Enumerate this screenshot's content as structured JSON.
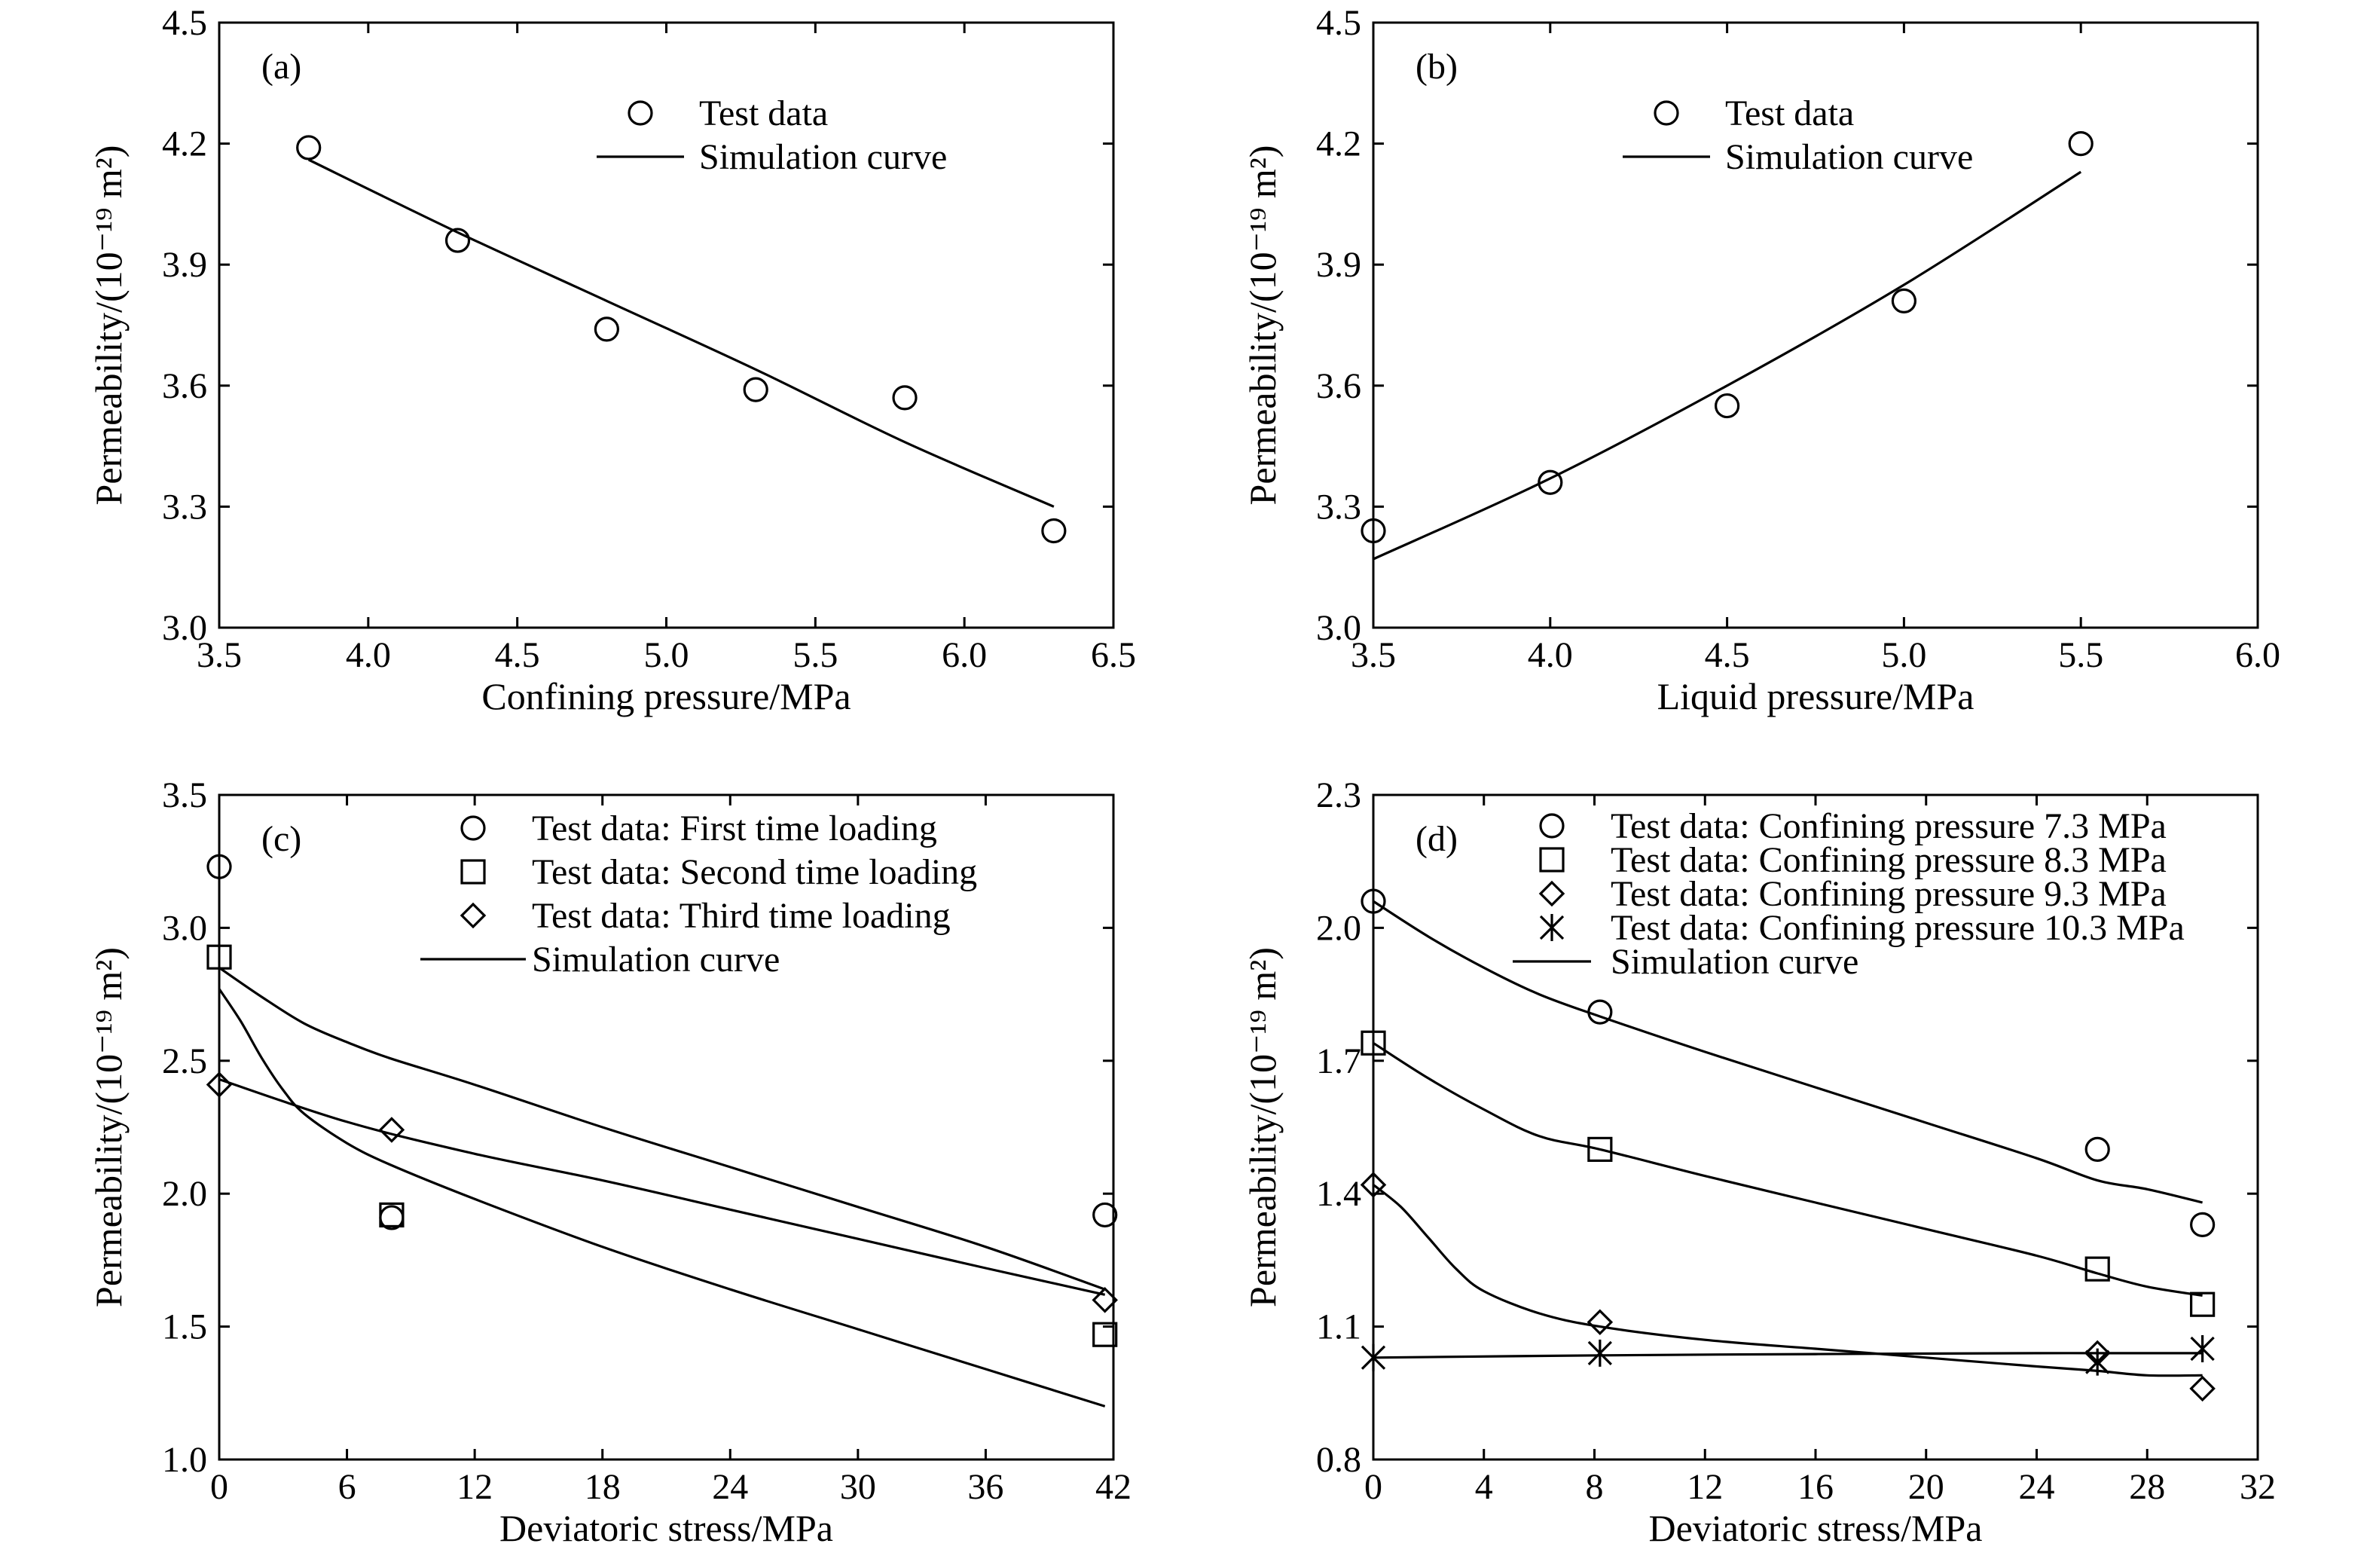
{
  "chart_data": [
    {
      "type": "scatter",
      "panel_label": "(a)",
      "xlabel": "Confining pressure/MPa",
      "ylabel": "Permeability/(10⁻¹⁹ m²)",
      "xlim": [
        3.5,
        6.5
      ],
      "ylim": [
        3.0,
        4.5
      ],
      "xticks": [
        "3.5",
        "4.0",
        "4.5",
        "5.0",
        "5.5",
        "6.0",
        "6.5"
      ],
      "yticks": [
        "3.0",
        "3.3",
        "3.6",
        "3.9",
        "4.2",
        "4.5"
      ],
      "legend_position": "top-center",
      "legend": [
        {
          "label": "Test data",
          "marker": "circle"
        },
        {
          "label": "Simulation curve",
          "marker": "line"
        }
      ],
      "series": [
        {
          "kind": "points",
          "marker": "circle",
          "x": [
            3.8,
            4.3,
            4.8,
            5.3,
            5.8,
            6.3
          ],
          "y": [
            4.19,
            3.96,
            3.74,
            3.59,
            3.57,
            3.24
          ]
        },
        {
          "kind": "line",
          "x": [
            3.8,
            4.3,
            4.8,
            5.3,
            5.8,
            6.3
          ],
          "y": [
            4.16,
            3.98,
            3.81,
            3.64,
            3.46,
            3.3
          ]
        }
      ]
    },
    {
      "type": "scatter",
      "panel_label": "(b)",
      "xlabel": "Liquid pressure/MPa",
      "ylabel": "Permeability/(10⁻¹⁹ m²)",
      "xlim": [
        3.5,
        6.0
      ],
      "ylim": [
        3.0,
        4.5
      ],
      "xticks": [
        "3.5",
        "4.0",
        "4.5",
        "5.0",
        "5.5",
        "6.0"
      ],
      "yticks": [
        "3.0",
        "3.3",
        "3.6",
        "3.9",
        "4.2",
        "4.5"
      ],
      "legend_position": "top-center",
      "legend": [
        {
          "label": "Test data",
          "marker": "circle"
        },
        {
          "label": "Simulation curve",
          "marker": "line"
        }
      ],
      "series": [
        {
          "kind": "points",
          "marker": "circle",
          "x": [
            3.5,
            4.0,
            4.5,
            5.0,
            5.5
          ],
          "y": [
            3.24,
            3.36,
            3.55,
            3.81,
            4.2
          ]
        },
        {
          "kind": "line",
          "x": [
            3.5,
            4.0,
            4.5,
            5.0,
            5.5
          ],
          "y": [
            3.17,
            3.37,
            3.6,
            3.85,
            4.13
          ]
        }
      ]
    },
    {
      "type": "scatter",
      "panel_label": "(c)",
      "xlabel": "Deviatoric stress/MPa",
      "ylabel": "Permeability/(10⁻¹⁹ m²)",
      "xlim": [
        0,
        42
      ],
      "ylim": [
        1.0,
        3.5
      ],
      "xticks": [
        "0",
        "6",
        "12",
        "18",
        "24",
        "30",
        "36",
        "42"
      ],
      "yticks": [
        "1.0",
        "1.5",
        "2.0",
        "2.5",
        "3.0",
        "3.5"
      ],
      "legend_position": "top-right",
      "legend": [
        {
          "label": "Test data: First time loading",
          "marker": "circle"
        },
        {
          "label": "Test data: Second time loading",
          "marker": "square"
        },
        {
          "label": "Test data: Third time loading",
          "marker": "diamond"
        },
        {
          "label": "Simulation curve",
          "marker": "line"
        }
      ],
      "series": [
        {
          "kind": "points",
          "marker": "circle",
          "x": [
            0,
            8.1,
            41.6
          ],
          "y": [
            3.23,
            1.91,
            1.92
          ]
        },
        {
          "kind": "points",
          "marker": "square",
          "x": [
            0,
            8.1,
            41.6
          ],
          "y": [
            2.89,
            1.92,
            1.47
          ]
        },
        {
          "kind": "points",
          "marker": "diamond",
          "x": [
            0,
            8.1,
            41.6
          ],
          "y": [
            2.41,
            2.24,
            1.6
          ]
        },
        {
          "kind": "line",
          "x": [
            0,
            2,
            4,
            6,
            8,
            12,
            18,
            24,
            30,
            36,
            41.6
          ],
          "y": [
            2.85,
            2.74,
            2.64,
            2.57,
            2.51,
            2.41,
            2.25,
            2.1,
            1.95,
            1.8,
            1.64
          ]
        },
        {
          "kind": "line",
          "x": [
            0,
            1,
            2,
            3,
            4,
            6,
            8,
            12,
            18,
            24,
            30,
            36,
            41.6
          ],
          "y": [
            2.77,
            2.65,
            2.51,
            2.39,
            2.3,
            2.19,
            2.11,
            1.98,
            1.8,
            1.64,
            1.49,
            1.34,
            1.2
          ]
        },
        {
          "kind": "line",
          "x": [
            0,
            6,
            12,
            18,
            24,
            30,
            36,
            41.6
          ],
          "y": [
            2.43,
            2.27,
            2.15,
            2.05,
            1.94,
            1.83,
            1.72,
            1.62
          ]
        }
      ]
    },
    {
      "type": "scatter",
      "panel_label": "(d)",
      "xlabel": "Deviatoric stress/MPa",
      "ylabel": "Permeability/(10⁻¹⁹ m²)",
      "xlim": [
        0,
        32
      ],
      "ylim": [
        0.8,
        2.3
      ],
      "xticks": [
        "0",
        "4",
        "8",
        "12",
        "16",
        "20",
        "24",
        "28",
        "32"
      ],
      "yticks": [
        "0.8",
        "1.1",
        "1.4",
        "1.7",
        "2.0",
        "2.3"
      ],
      "legend_position": "top-right",
      "legend": [
        {
          "label": "Test data: Confining pressure 7.3 MPa",
          "marker": "circle"
        },
        {
          "label": "Test data: Confining pressure 8.3 MPa",
          "marker": "square"
        },
        {
          "label": "Test data: Confining pressure 9.3 MPa",
          "marker": "diamond"
        },
        {
          "label": "Test data: Confining pressure 10.3 MPa",
          "marker": "asterisk"
        },
        {
          "label": "Simulation curve",
          "marker": "line"
        }
      ],
      "series": [
        {
          "kind": "points",
          "marker": "circle",
          "x": [
            0,
            8.2,
            26.2,
            30
          ],
          "y": [
            2.06,
            1.81,
            1.5,
            1.33
          ]
        },
        {
          "kind": "points",
          "marker": "square",
          "x": [
            0,
            8.2,
            26.2,
            30
          ],
          "y": [
            1.74,
            1.5,
            1.23,
            1.15
          ]
        },
        {
          "kind": "points",
          "marker": "diamond",
          "x": [
            0,
            8.2,
            26.2,
            30
          ],
          "y": [
            1.42,
            1.11,
            1.04,
            0.96
          ]
        },
        {
          "kind": "points",
          "marker": "asterisk",
          "x": [
            0,
            8.2,
            26.2,
            30
          ],
          "y": [
            1.03,
            1.04,
            1.02,
            1.05
          ]
        },
        {
          "kind": "line",
          "x": [
            0,
            2,
            4,
            6,
            8.2,
            12,
            16,
            20,
            24,
            26.2,
            28,
            30
          ],
          "y": [
            2.06,
            1.98,
            1.91,
            1.85,
            1.8,
            1.72,
            1.64,
            1.56,
            1.48,
            1.43,
            1.41,
            1.38
          ]
        },
        {
          "kind": "line",
          "x": [
            0,
            2,
            4,
            6,
            8.2,
            12,
            16,
            20,
            24,
            26.2,
            28,
            30
          ],
          "y": [
            1.74,
            1.66,
            1.59,
            1.53,
            1.5,
            1.44,
            1.38,
            1.32,
            1.26,
            1.22,
            1.19,
            1.17
          ]
        },
        {
          "kind": "line",
          "x": [
            0,
            1,
            2,
            3,
            4,
            6,
            8.2,
            12,
            16,
            20,
            24,
            26.2,
            28,
            30
          ],
          "y": [
            1.42,
            1.37,
            1.3,
            1.23,
            1.18,
            1.13,
            1.1,
            1.07,
            1.05,
            1.03,
            1.01,
            1.0,
            0.99,
            0.99
          ]
        },
        {
          "kind": "line",
          "x": [
            0,
            8.2,
            16,
            24,
            30
          ],
          "y": [
            1.03,
            1.035,
            1.038,
            1.04,
            1.04
          ]
        }
      ]
    }
  ]
}
